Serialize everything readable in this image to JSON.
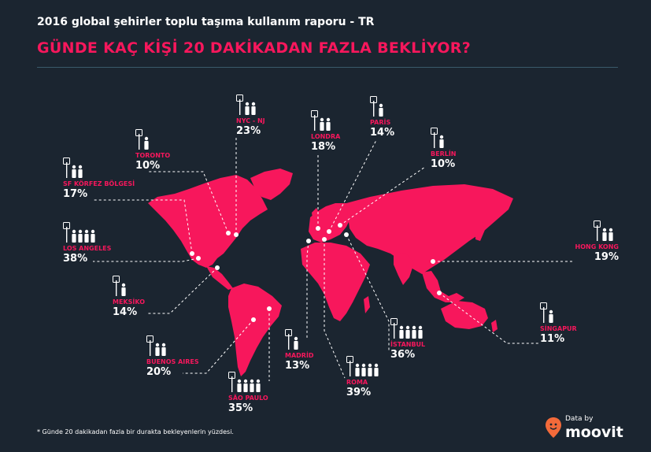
{
  "header": {
    "subtitle": "2016 global şehirler toplu taşıma kullanım raporu - TR",
    "title": "GÜNDE KAÇ KİŞİ 20 DAKİKADAN FAZLA BEKLİYOR?"
  },
  "colors": {
    "accent": "#f7175c",
    "background": "#1b2530",
    "text": "#ffffff",
    "rule": "#3a5a6a"
  },
  "cities": [
    {
      "name": "NYC - NJ",
      "value": "23%",
      "people": 2
    },
    {
      "name": "LONDRA",
      "value": "18%",
      "people": 2
    },
    {
      "name": "PARİS",
      "value": "14%",
      "people": 1
    },
    {
      "name": "TORONTO",
      "value": "10%",
      "people": 1
    },
    {
      "name": "BERLİN",
      "value": "10%",
      "people": 1
    },
    {
      "name": "SF KÖRFEZ BÖLGESİ",
      "value": "17%",
      "people": 2
    },
    {
      "name": "LOS ANGELES",
      "value": "38%",
      "people": 4
    },
    {
      "name": "HONG KONG",
      "value": "19%",
      "people": 2
    },
    {
      "name": "MEKSİKO",
      "value": "14%",
      "people": 1
    },
    {
      "name": "SİNGAPUR",
      "value": "11%",
      "people": 1
    },
    {
      "name": "İSTANBUL",
      "value": "36%",
      "people": 4
    },
    {
      "name": "BUENOS AIRES",
      "value": "20%",
      "people": 2
    },
    {
      "name": "MADRİD",
      "value": "13%",
      "people": 1
    },
    {
      "name": "ROMA",
      "value": "39%",
      "people": 4
    },
    {
      "name": "SÃO PAULO",
      "value": "35%",
      "people": 4
    }
  ],
  "footnote": "* Günde 20 dakikadan fazla bir durakta bekleyenlerin yüzdesi.",
  "brand": {
    "by": "Data by",
    "logo": "moovit",
    "icon": "moovit-pin-icon"
  }
}
